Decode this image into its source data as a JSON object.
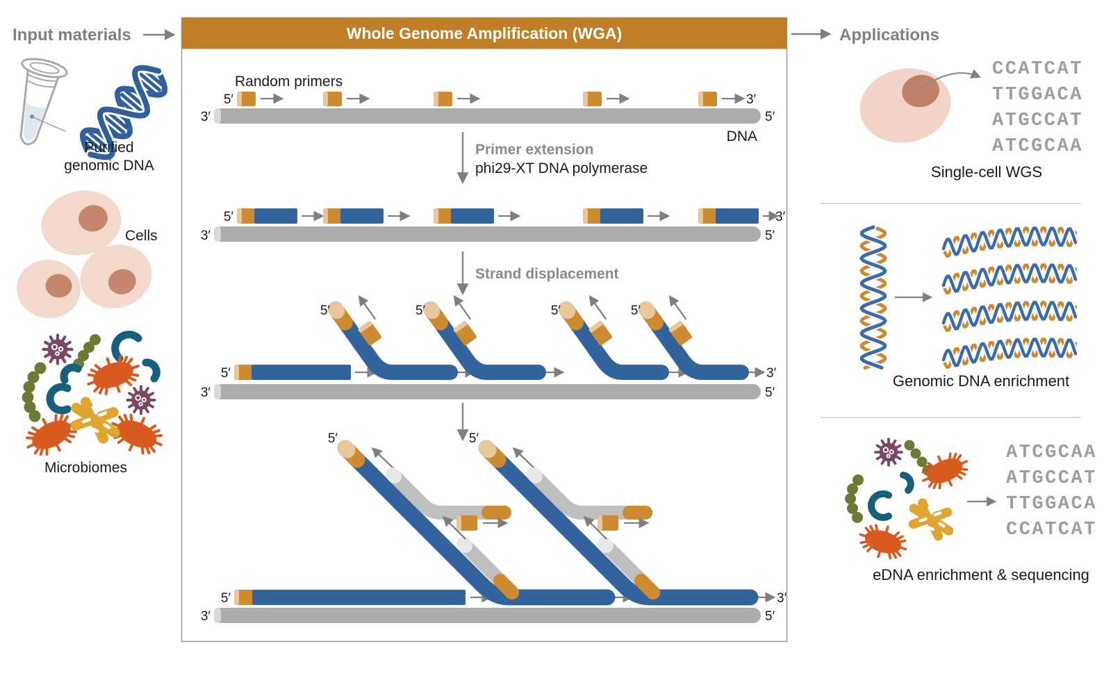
{
  "left_panel": {
    "heading": "Input materials",
    "purified": [
      "Purified",
      "genomic DNA"
    ],
    "cells_label": "Cells",
    "microbiomes_label": "Microbiomes"
  },
  "wga": {
    "title": "Whole Genome Amplification (WGA)",
    "random_primers": "Random primers",
    "dna_label": "DNA",
    "steps": [
      {
        "title": "Primer extension",
        "subtitle": "phi29-XT DNA polymerase"
      },
      {
        "title": "Strand displacement"
      }
    ]
  },
  "labels": {
    "five": "5′",
    "three": "3′"
  },
  "right_panel": {
    "heading": "Applications",
    "apps": [
      {
        "caption": "Single-cell WGS",
        "seq": [
          "CCATCAT",
          "TTGGACA",
          "ATGCCAT",
          "ATCGCAA"
        ]
      },
      {
        "caption": "Genomic DNA enrichment"
      },
      {
        "caption": "eDNA enrichment & sequencing",
        "seq": [
          "ATCGCAA",
          "ATGCCAT",
          "TTGGACA",
          "CCATCAT"
        ]
      }
    ]
  },
  "colors": {
    "header_orange": "#C07E27",
    "primer_orange": "#CE8A2E",
    "primer_cap": "#E8C79C",
    "strand_blue": "#33639D",
    "template_gray": "#ACACAC",
    "displaced_gray": "#BFBFBF",
    "arrow_gray": "#7F7F7F",
    "heading_gray": "#808080",
    "sequence_gray": "#9E9E9E"
  }
}
